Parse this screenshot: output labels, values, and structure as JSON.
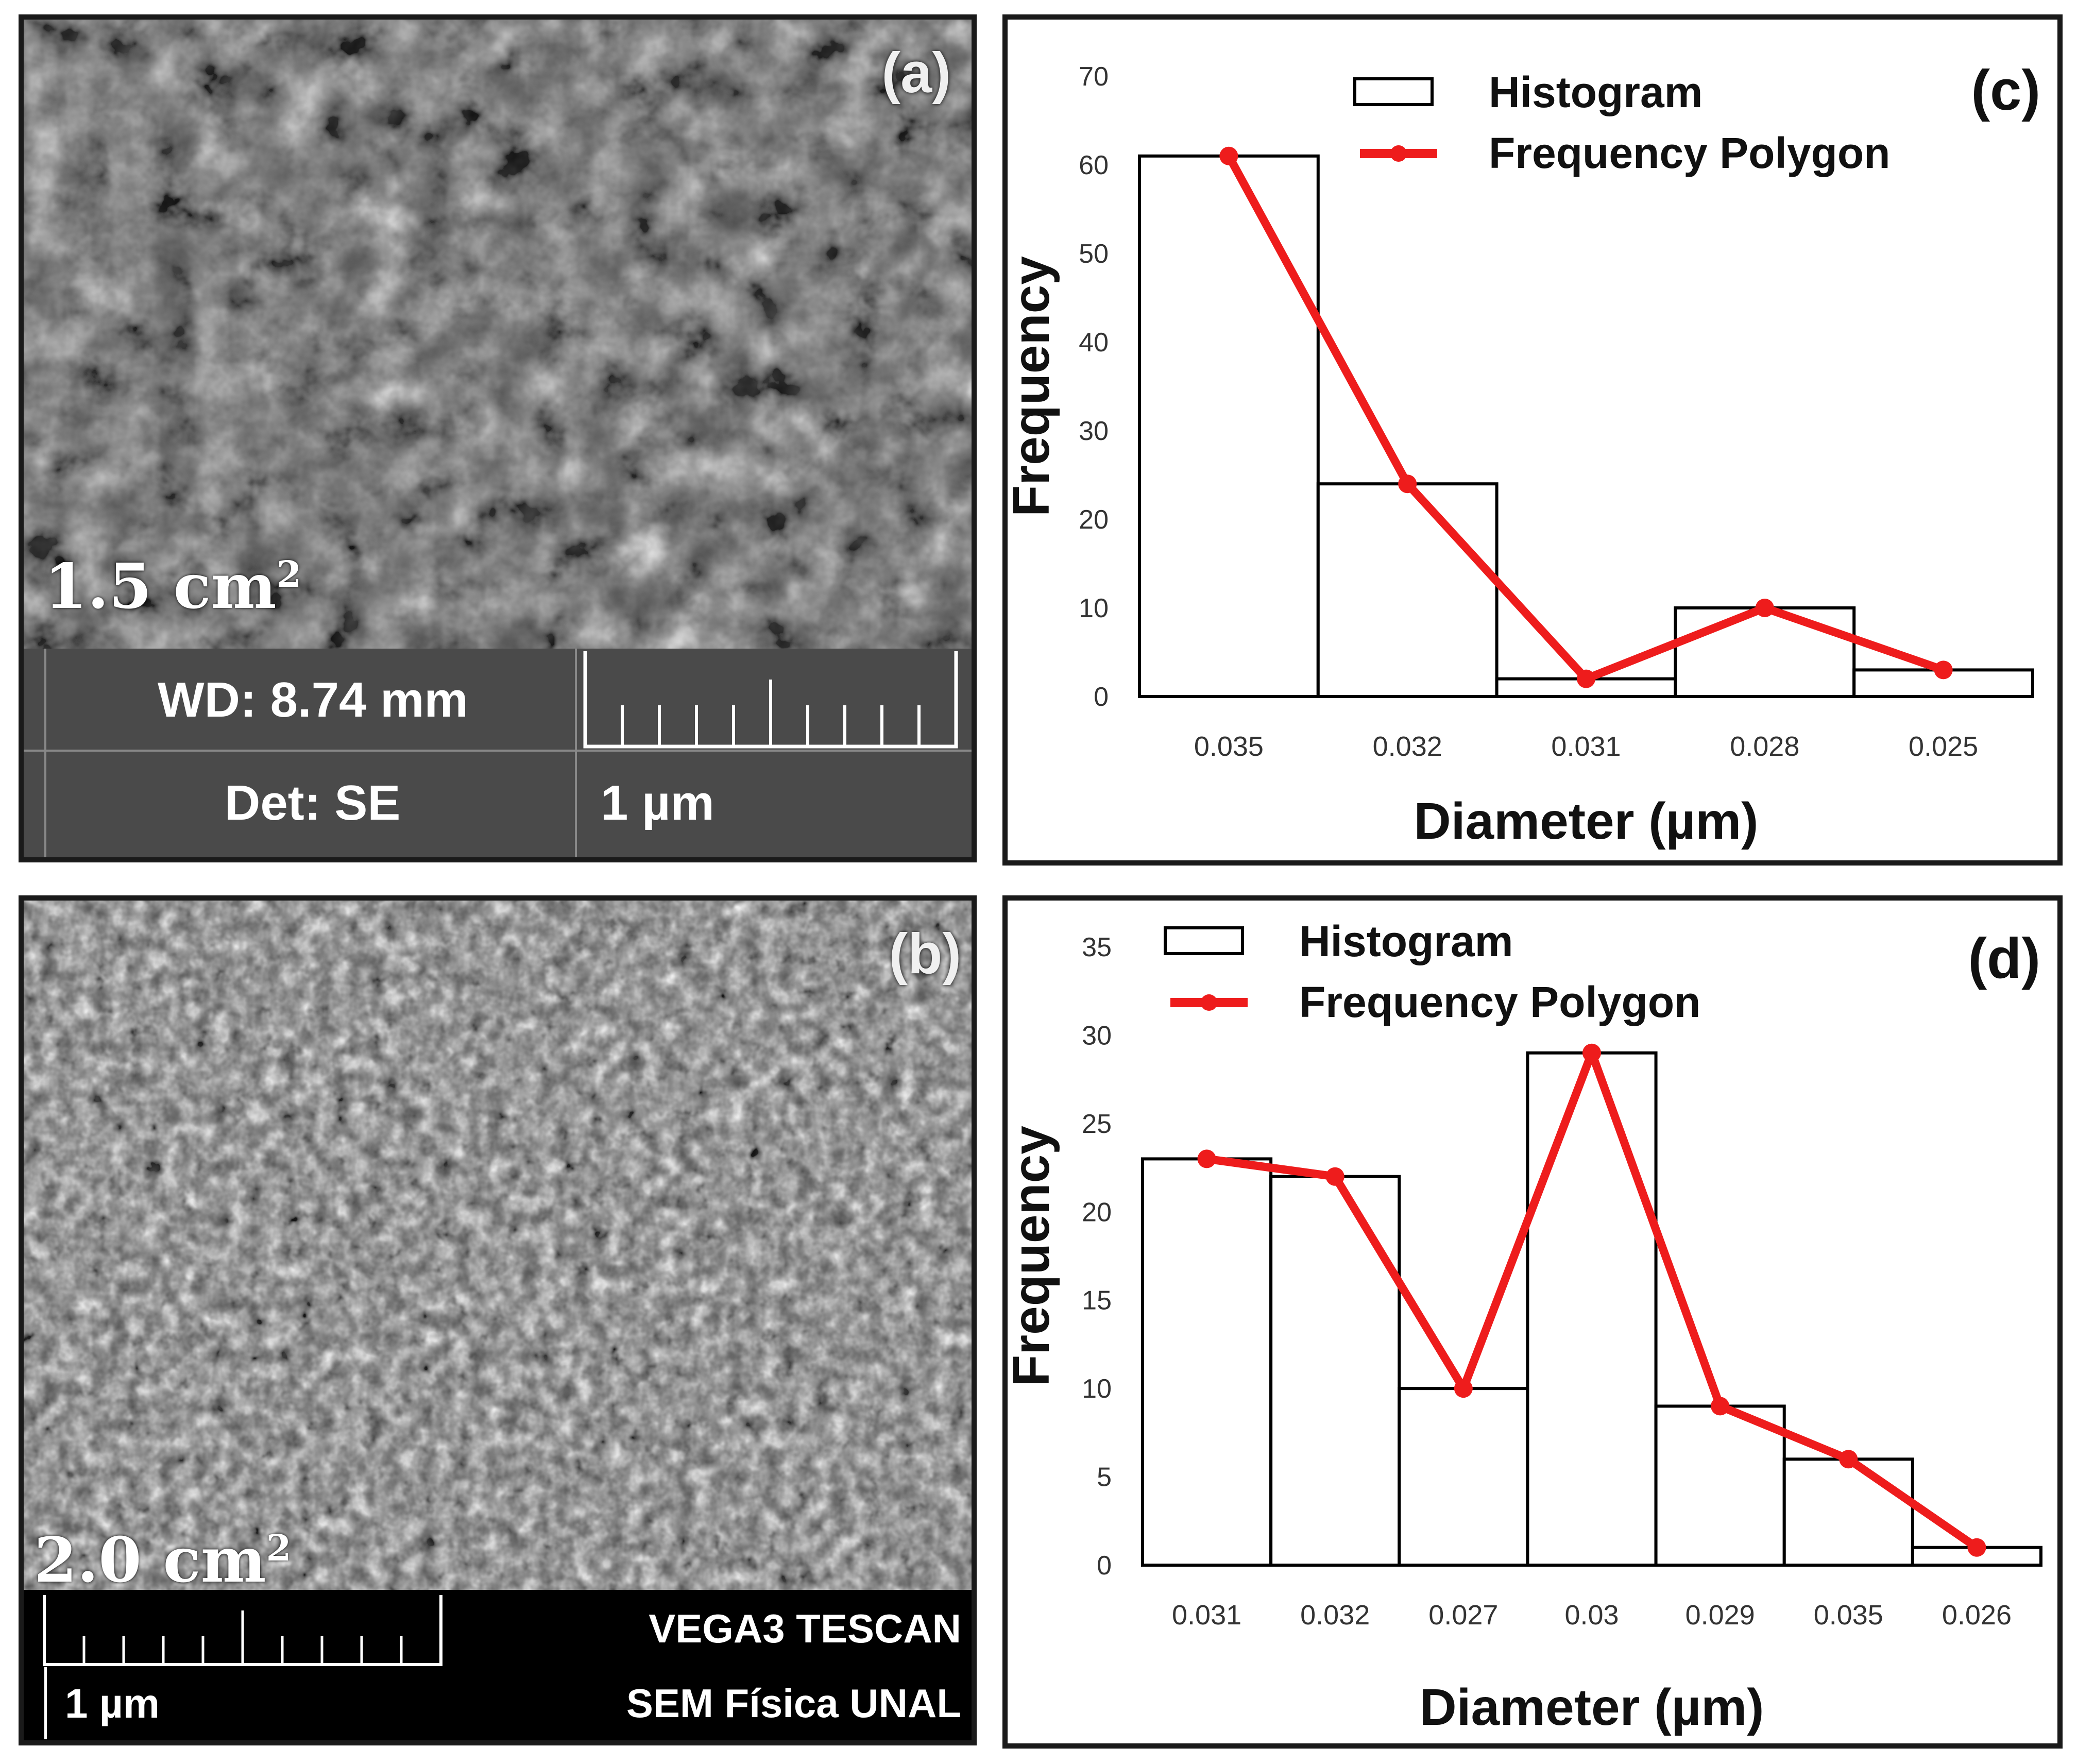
{
  "panels": {
    "a": {
      "letter": "(a)",
      "area": "1.5 cm",
      "area_exp": "2",
      "wd": "WD: 8.74 mm",
      "det": "Det: SE",
      "scale": "1 µm"
    },
    "b": {
      "letter": "(b)",
      "area": "2.0 cm",
      "area_exp": "2",
      "scale": "1 µm",
      "instrument": "VEGA3 TESCAN",
      "facility": "SEM Física UNAL"
    }
  },
  "colors": {
    "polygon": "#ee1c1c",
    "bar_fill": "#ffffff",
    "bar_stroke": "#000000"
  },
  "chart_data": [
    {
      "panel_label": "(c)",
      "type": "bar",
      "categories": [
        "0.035",
        "0.032",
        "0.031",
        "0.028",
        "0.025"
      ],
      "series": [
        {
          "name": "Histogram",
          "type": "bar",
          "values": [
            61,
            24,
            2,
            10,
            3
          ]
        },
        {
          "name": "Frequency Polygon",
          "type": "line",
          "values": [
            61,
            24,
            2,
            10,
            3
          ]
        }
      ],
      "xlabel": "Diameter (µm)",
      "ylabel": "Frequency",
      "ylim": [
        0,
        70
      ],
      "yticks": [
        "0",
        "10",
        "20",
        "30",
        "40",
        "50",
        "60",
        "70"
      ],
      "legend": "top"
    },
    {
      "panel_label": "(d)",
      "type": "bar",
      "categories": [
        "0.031",
        "0.032",
        "0.027",
        "0.03",
        "0.029",
        "0.035",
        "0.026"
      ],
      "series": [
        {
          "name": "Histogram",
          "type": "bar",
          "values": [
            23,
            22,
            10,
            29,
            9,
            6,
            1
          ]
        },
        {
          "name": "Frequency Polygon",
          "type": "line",
          "values": [
            23,
            22,
            10,
            29,
            9,
            6,
            1
          ]
        }
      ],
      "xlabel": "Diameter (µm)",
      "ylabel": "Frequency",
      "ylim": [
        0,
        35
      ],
      "yticks": [
        "0",
        "5",
        "10",
        "15",
        "20",
        "25",
        "30",
        "35"
      ],
      "legend": "top-left"
    }
  ]
}
